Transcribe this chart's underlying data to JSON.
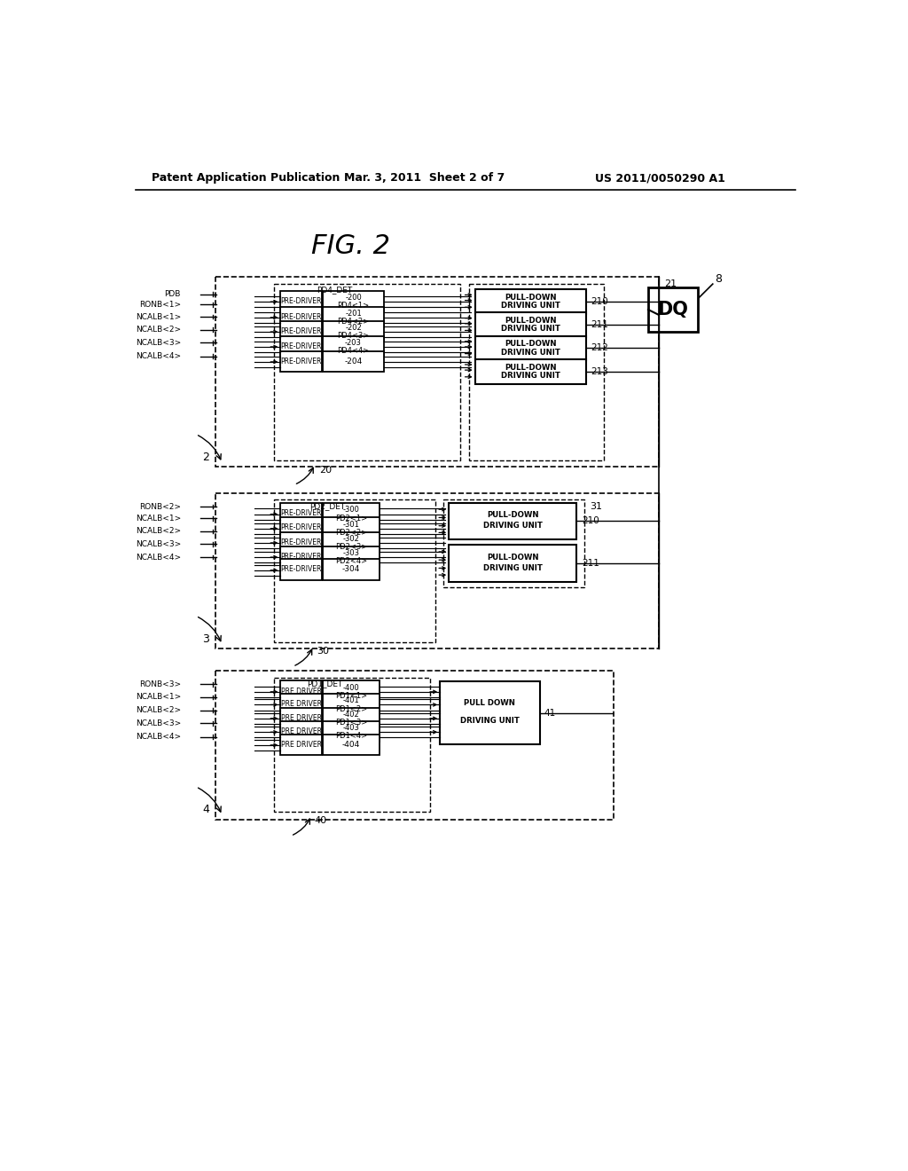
{
  "header_left": "Patent Application Publication",
  "header_mid": "Mar. 3, 2011  Sheet 2 of 7",
  "header_right": "US 2011/0050290 A1",
  "bg_color": "#ffffff",
  "fig_label": "FIG. 2",
  "dq_label": "DQ",
  "dq_num": "8",
  "b1_inputs": [
    "PDB",
    "RONB<1>",
    "NCALB<1>",
    "NCALB<2>",
    "NCALB<3>",
    "NCALB<4>"
  ],
  "b2_inputs": [
    "RONB<2>",
    "NCALB<1>",
    "NCALB<2>",
    "NCALB<3>",
    "NCALB<4>"
  ],
  "b3_inputs": [
    "RONB<3>",
    "NCALB<1>",
    "NCALB<2>",
    "NCALB<3>",
    "NCALB<4>"
  ],
  "b1_pd_nums": [
    [
      "200",
      "PD4<1>"
    ],
    [
      "201",
      "PD4<2>"
    ],
    [
      "202",
      "PD4<3>"
    ],
    [
      "203",
      "PD4<4>"
    ],
    [
      "204",
      null
    ]
  ],
  "b2_pd_nums": [
    [
      "300",
      "PD2<1>"
    ],
    [
      "301",
      "PD2<2>"
    ],
    [
      "302",
      "PD2<3>"
    ],
    [
      "303",
      "PD2<4>"
    ],
    [
      "304",
      null
    ]
  ],
  "b3_pd_nums": [
    [
      "400",
      "PD1<1>"
    ],
    [
      "401",
      "PD1<2>"
    ],
    [
      "402",
      "PD1<3>"
    ],
    [
      "403",
      "PD1<4>"
    ],
    [
      "404",
      null
    ]
  ],
  "b1_pu_labels": [
    "210",
    "211",
    "212",
    "213"
  ],
  "b2_pu_labels": [
    "210",
    "211"
  ],
  "b1_det": "PD4_DET",
  "b2_det": "PD2_DET",
  "b3_det": "PD1_DET"
}
